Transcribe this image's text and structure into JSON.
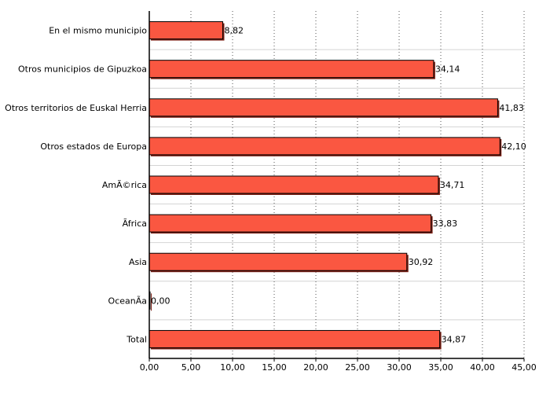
{
  "chart_data": {
    "type": "bar",
    "orientation": "horizontal",
    "categories": [
      "En el mismo municipio",
      "Otros municipios de Gipuzkoa",
      "Otros territorios de Euskal Herria",
      "Otros estados de Europa",
      "AmÃ©rica",
      "Ãfrica",
      "Asia",
      "OceanÃ­a",
      "Total"
    ],
    "values": [
      8.82,
      34.14,
      41.83,
      42.1,
      34.71,
      33.83,
      30.92,
      0.0,
      34.87
    ],
    "value_labels": [
      "8,82",
      "34,14",
      "41,83",
      "42,10",
      "34,71",
      "33,83",
      "30,92",
      "0,00",
      "34,87"
    ],
    "xlim": [
      0,
      45
    ],
    "xticks": [
      "0,00",
      "5,00",
      "10,00",
      "15,00",
      "20,00",
      "25,00",
      "30,00",
      "35,00",
      "40,00",
      "45,00"
    ],
    "grid": "vertical dotted, horizontal solid",
    "bar_color": "#fa5741"
  }
}
